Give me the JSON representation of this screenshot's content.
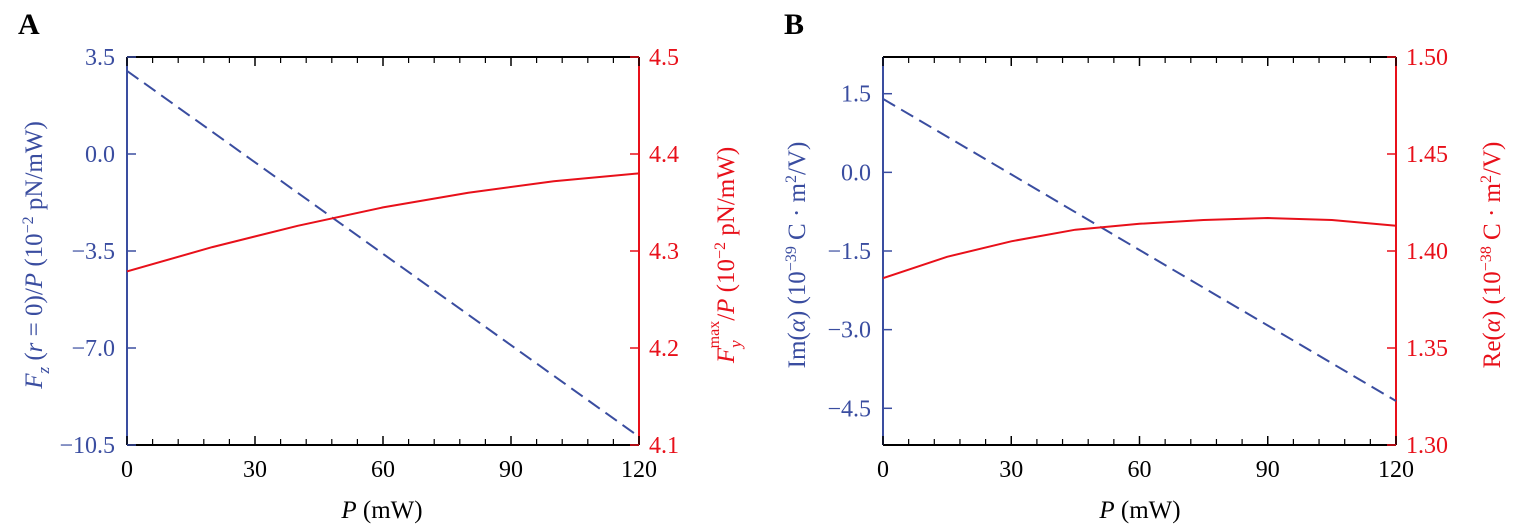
{
  "colors": {
    "left_axis": "#3a4da0",
    "right_axis": "#e8101a",
    "frame": "#000000"
  },
  "chart_data": [
    {
      "panel_label": "A",
      "type": "line",
      "xlabel": "P (mW)",
      "x_ticks": [
        "0",
        "30",
        "60",
        "90",
        "120"
      ],
      "xlim": [
        0,
        120
      ],
      "y_left": {
        "label": "Fz (r = 0)/P (10−2 pN/mW)",
        "ticks": [
          "3.5",
          "0.0",
          "−3.5",
          "−7.0",
          "−10.5"
        ],
        "ylim": [
          -10.5,
          3.5
        ],
        "color": "#3a4da0"
      },
      "y_right": {
        "label": "Fymax/P (10−2 pN/mW)",
        "ticks": [
          "4.5",
          "4.4",
          "4.3",
          "4.2",
          "4.1"
        ],
        "ylim": [
          4.1,
          4.5
        ],
        "color": "#e8101a"
      },
      "series": [
        {
          "axis": "left",
          "style": "dashed",
          "x": [
            0,
            30,
            60,
            90,
            120
          ],
          "y": [
            3.0,
            -0.3,
            -3.6,
            -6.9,
            -10.2
          ]
        },
        {
          "axis": "right",
          "style": "solid",
          "x": [
            0,
            20,
            40,
            60,
            80,
            100,
            120
          ],
          "y": [
            4.279,
            4.304,
            4.326,
            4.345,
            4.36,
            4.372,
            4.38
          ]
        }
      ]
    },
    {
      "panel_label": "B",
      "type": "line",
      "xlabel": "P (mW)",
      "x_ticks": [
        "0",
        "30",
        "60",
        "90",
        "120"
      ],
      "xlim": [
        0,
        120
      ],
      "y_left": {
        "label": "Im(α) (10−39 C · m2/V)",
        "ticks": [
          "1.5",
          "0.0",
          "−1.5",
          "−3.0",
          "−4.5"
        ],
        "ylim": [
          -5.2,
          2.2
        ],
        "color": "#3a4da0"
      },
      "y_right": {
        "label": "Re(α) (10−38 C · m2/V)",
        "ticks": [
          "1.50",
          "1.45",
          "1.40",
          "1.35",
          "1.30"
        ],
        "ylim": [
          1.3,
          1.5
        ],
        "color": "#e8101a"
      },
      "series": [
        {
          "axis": "left",
          "style": "dashed",
          "x": [
            0,
            30,
            60,
            90,
            120
          ],
          "y": [
            1.4,
            -0.04,
            -1.48,
            -2.92,
            -4.36
          ]
        },
        {
          "axis": "right",
          "style": "solid",
          "x": [
            0,
            15,
            30,
            45,
            60,
            75,
            90,
            105,
            120
          ],
          "y": [
            1.386,
            1.397,
            1.405,
            1.411,
            1.414,
            1.416,
            1.417,
            1.416,
            1.413
          ]
        }
      ]
    }
  ]
}
